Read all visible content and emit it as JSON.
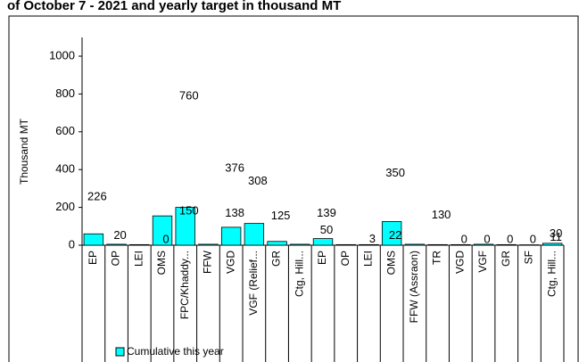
{
  "chart_data": {
    "type": "bar",
    "title": "of October 7 - 2021 and yearly target in thousand MT",
    "y_label": "Thousand MT",
    "categories": [
      "EP",
      "OP",
      "LEI",
      "OMS",
      "FPC/Khaddy...",
      "FFW",
      "VGD",
      "VGF (Relief...",
      "GR",
      "Ctg, Hill...",
      "EP",
      "OP",
      "LEI",
      "OMS",
      "FFW (Assraon)",
      "TR",
      "VGD",
      "VGF",
      "GR",
      "SF",
      "Ctg, Hill..."
    ],
    "series": [
      {
        "name": "Cumulative this year",
        "color": "#00ffff",
        "values": [
          60,
          5,
          3,
          155,
          200,
          5,
          95,
          115,
          20,
          5,
          35,
          3,
          3,
          125,
          5,
          3,
          3,
          5,
          3,
          2,
          10
        ]
      },
      {
        "type": "label",
        "values": [
          226,
          20,
          null,
          null,
          760,
          null,
          376,
          308,
          125,
          null,
          139,
          null,
          null,
          350,
          null,
          130,
          null,
          null,
          null,
          null,
          11
        ]
      },
      {
        "type": "label",
        "values": [
          null,
          null,
          null,
          0,
          150,
          null,
          138,
          null,
          null,
          null,
          50,
          null,
          3,
          22,
          null,
          null,
          0,
          0,
          0,
          0,
          30
        ]
      }
    ],
    "ylim": [
      0,
      1000
    ],
    "yticks": [
      0,
      200,
      400,
      600,
      800,
      1000
    ]
  }
}
